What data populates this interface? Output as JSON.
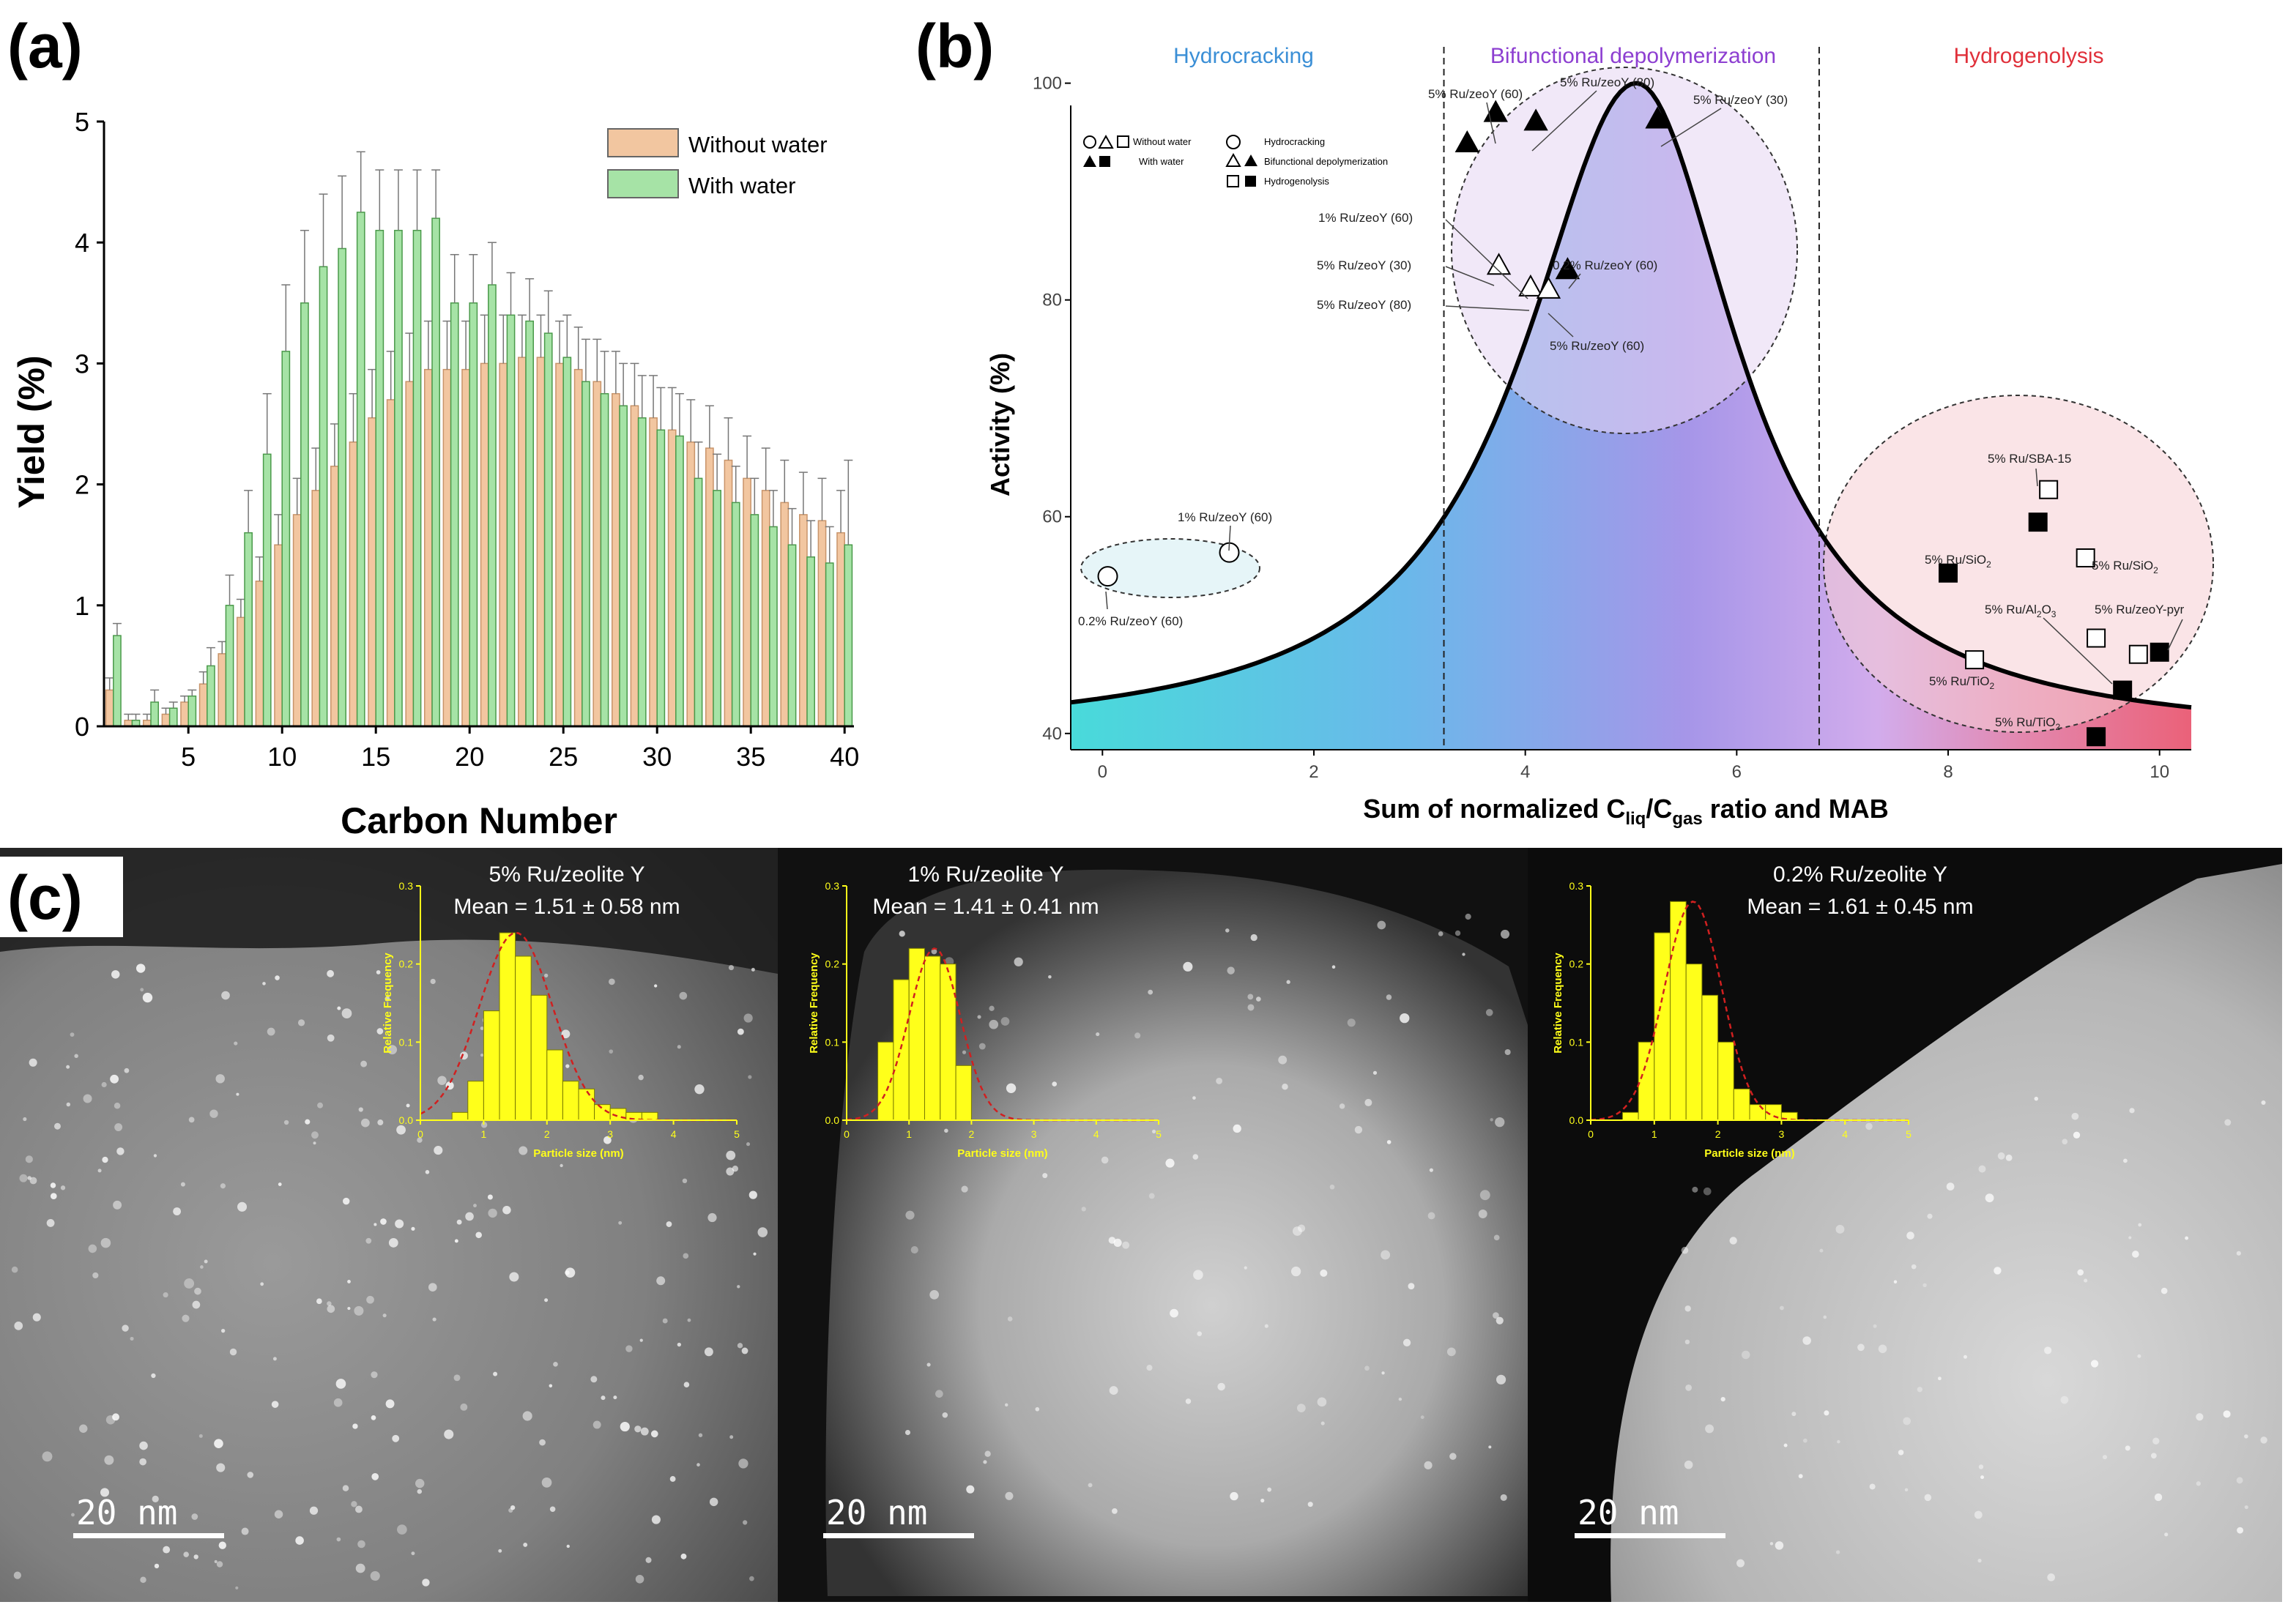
{
  "panel_labels": {
    "a": "(a)",
    "b": "(b)",
    "c": "(c)"
  },
  "colors": {
    "without": "#f2c6a0",
    "with": "#7fc87f",
    "hydro_text": "#3b8fd6",
    "bifunc_text": "#8d3fd1",
    "hydrog_text": "#e0303a",
    "yellow": "#ffff1a"
  },
  "chart_data": [
    {
      "type": "bar",
      "panel": "(a)",
      "xlabel": "Carbon Number",
      "ylabel": "Yield (%)",
      "ylim": [
        0,
        5
      ],
      "xlim": [
        0.5,
        40.5
      ],
      "xticks": [
        "5",
        "10",
        "15",
        "20",
        "25",
        "30",
        "35",
        "40"
      ],
      "yticks": [
        "0",
        "1",
        "2",
        "3",
        "4",
        "5"
      ],
      "legend": [
        "Without water",
        "With water"
      ],
      "categories": [
        1,
        2,
        3,
        4,
        5,
        6,
        7,
        8,
        9,
        10,
        11,
        12,
        13,
        14,
        15,
        16,
        17,
        18,
        19,
        20,
        21,
        22,
        23,
        24,
        25,
        26,
        27,
        28,
        29,
        30,
        31,
        32,
        33,
        34,
        35,
        36,
        37,
        38,
        39,
        40
      ],
      "series": [
        {
          "name": "Without water",
          "values": [
            0.3,
            0.05,
            0.05,
            0.1,
            0.2,
            0.35,
            0.6,
            0.9,
            1.2,
            1.5,
            1.75,
            1.95,
            2.15,
            2.35,
            2.55,
            2.7,
            2.85,
            2.95,
            2.95,
            2.95,
            3.0,
            3.0,
            3.05,
            3.05,
            3.0,
            2.95,
            2.85,
            2.75,
            2.65,
            2.55,
            2.45,
            2.35,
            2.3,
            2.2,
            2.05,
            1.95,
            1.85,
            1.75,
            1.7,
            1.6
          ],
          "errors": [
            0.1,
            0.05,
            0.05,
            0.05,
            0.05,
            0.1,
            0.1,
            0.15,
            0.2,
            0.25,
            0.3,
            0.35,
            0.35,
            0.4,
            0.4,
            0.4,
            0.4,
            0.4,
            0.4,
            0.4,
            0.4,
            0.4,
            0.35,
            0.35,
            0.35,
            0.35,
            0.35,
            0.35,
            0.35,
            0.35,
            0.35,
            0.35,
            0.35,
            0.35,
            0.35,
            0.35,
            0.35,
            0.35,
            0.35,
            0.35
          ]
        },
        {
          "name": "With water",
          "values": [
            0.75,
            0.05,
            0.2,
            0.15,
            0.25,
            0.5,
            1.0,
            1.6,
            2.25,
            3.1,
            3.5,
            3.8,
            3.95,
            4.25,
            4.1,
            4.1,
            4.1,
            4.2,
            3.5,
            3.5,
            3.65,
            3.4,
            3.35,
            3.25,
            3.05,
            2.85,
            2.75,
            2.65,
            2.55,
            2.45,
            2.4,
            2.05,
            1.95,
            1.85,
            1.75,
            1.65,
            1.5,
            1.4,
            1.35,
            1.5
          ],
          "errors": [
            0.1,
            0.05,
            0.1,
            0.05,
            0.05,
            0.15,
            0.25,
            0.35,
            0.5,
            0.55,
            0.6,
            0.6,
            0.6,
            0.5,
            0.5,
            0.5,
            0.5,
            0.4,
            0.4,
            0.4,
            0.35,
            0.35,
            0.35,
            0.35,
            0.35,
            0.35,
            0.35,
            0.35,
            0.35,
            0.35,
            0.35,
            0.3,
            0.3,
            0.3,
            0.3,
            0.3,
            0.3,
            0.3,
            0.3,
            0.7
          ]
        }
      ]
    },
    {
      "type": "scatter",
      "panel": "(b)",
      "xlabel_main": "Sum of normalized C",
      "xlabel_sub1": "liq",
      "xlabel_slash": "/C",
      "xlabel_sub2": "gas",
      "xlabel_tail": " ratio and MAB",
      "ylabel": "Activity (%)",
      "xlim": [
        -0.3,
        10.3
      ],
      "ylim": [
        38.5,
        102
      ],
      "xticks": [
        "0",
        "2",
        "4",
        "6",
        "8",
        "10"
      ],
      "yticks": [
        "40",
        "60",
        "80",
        "100"
      ],
      "regions": [
        "Hydrocracking",
        "Bifunctional depolymerization",
        "Hydrogenolysis"
      ],
      "boundaries": [
        3.23,
        6.78
      ],
      "curve": {
        "peak_x": 5.05,
        "peak_y": 100,
        "base_y": 39.5,
        "left_width": 1.3,
        "right_width": 1.18
      },
      "legend": {
        "without": "Without water",
        "with": "With water",
        "cat1": "Hydrocracking",
        "cat2": "Bifunctional depolymerization",
        "cat3": "Hydrogenolysis"
      },
      "points": [
        {
          "label": "0.2% Ru/zeoY (60)",
          "x": 0.05,
          "y": 54.5,
          "marker": "circle",
          "filled": false
        },
        {
          "label": "1% Ru/zeoY (60)",
          "x": 1.2,
          "y": 56.7,
          "marker": "circle",
          "filled": false
        },
        {
          "label": "5% Ru/zeoY (60)",
          "x": 3.45,
          "y": 94.5,
          "marker": "triangle",
          "filled": true
        },
        {
          "label": "",
          "x": 3.72,
          "y": 97.3,
          "marker": "triangle",
          "filled": true
        },
        {
          "label": "5% Ru/zeoY (80)",
          "x": 4.1,
          "y": 96.5,
          "marker": "triangle",
          "filled": true
        },
        {
          "label": "5% Ru/zeoY (30)",
          "x": 5.25,
          "y": 96.7,
          "marker": "triangle",
          "filled": true
        },
        {
          "label": "5% Ru/zeoY (30)",
          "x": 3.75,
          "y": 83.2,
          "marker": "triangle",
          "filled": false
        },
        {
          "label": "0.2% Ru/zeoY (60)",
          "x": 4.4,
          "y": 82.8,
          "marker": "triangle",
          "filled": true
        },
        {
          "label": "5% Ru/zeoY (80)",
          "x": 4.05,
          "y": 81.2,
          "marker": "triangle",
          "filled": false
        },
        {
          "label": "5% Ru/zeoY (60)",
          "x": 4.22,
          "y": 81.0,
          "marker": "triangle",
          "filled": false
        },
        {
          "label": "5% Ru/SBA-15",
          "x": 8.95,
          "y": 62.5,
          "marker": "square",
          "filled": false
        },
        {
          "label": "",
          "x": 8.85,
          "y": 59.5,
          "marker": "square",
          "filled": true
        },
        {
          "label": "5% Ru/SiO2",
          "x": 9.3,
          "y": 56.2,
          "marker": "square",
          "filled": false
        },
        {
          "label": "5% Ru/SiO2",
          "x": 8.0,
          "y": 54.8,
          "marker": "square",
          "filled": true
        },
        {
          "label": "5% Ru/Al2O3",
          "x": 9.4,
          "y": 48.8,
          "marker": "square",
          "filled": false
        },
        {
          "label": "5% Ru/zeoY-pyr",
          "x": 9.8,
          "y": 47.3,
          "marker": "square",
          "filled": false
        },
        {
          "label": "",
          "x": 10.0,
          "y": 47.5,
          "marker": "square",
          "filled": true
        },
        {
          "label": "5% Ru/TiO2",
          "x": 8.25,
          "y": 46.8,
          "marker": "square",
          "filled": false
        },
        {
          "label": "",
          "x": 9.65,
          "y": 44.0,
          "marker": "square",
          "filled": true
        },
        {
          "label": "5% Ru/TiO2",
          "x": 9.4,
          "y": 39.7,
          "marker": "square",
          "filled": true
        }
      ],
      "point_labels": {
        "l_02_60_c": "0.2% Ru/zeoY (60)",
        "l_1_60_c": "1% Ru/zeoY (60)",
        "l_5_60_top": "5% Ru/zeoY (60)",
        "l_5_80_top": "5% Ru/zeoY (80)",
        "l_5_30_top": "5% Ru/zeoY (30)",
        "l_1_60_mid": "1% Ru/zeoY (60)",
        "l_5_30_mid": "5% Ru/zeoY (30)",
        "l_02_60_mid": "0.2% Ru/zeoY (60)",
        "l_5_80_mid": "5% Ru/zeoY (80)",
        "l_5_60_bot": "5% Ru/zeoY (60)",
        "l_sba": "5% Ru/SBA-15",
        "l_sio2_a": "5% Ru/SiO",
        "l_sio2_b": "5% Ru/SiO",
        "l_al2o3_a": "5% Ru/Al",
        "l_al2o3_b": "O",
        "l_pyr": "5% Ru/zeoY-pyr",
        "l_tio2_a": "5% Ru/TiO",
        "l_tio2_b": "5% Ru/TiO",
        "sub2": "2",
        "sub3": "3"
      }
    },
    {
      "type": "bar",
      "panel": "(c) 5% Ru/zeolite Y",
      "title": "5% Ru/zeolite Y",
      "mean": "Mean = 1.51 ± 0.58 nm",
      "xlabel": "Particle size (nm)",
      "ylabel": "Relative Frequency",
      "xticks": [
        "0",
        "1",
        "2",
        "3",
        "4",
        "5"
      ],
      "yticks": [
        "0.0",
        "0.1",
        "0.2",
        "0.3"
      ],
      "bin_width": 0.25,
      "bin_start": 0.5,
      "values": [
        0.01,
        0.05,
        0.14,
        0.24,
        0.21,
        0.16,
        0.09,
        0.05,
        0.04,
        0.02,
        0.015,
        0.01,
        0.01
      ],
      "fit_mean": 1.51,
      "fit_sd": 0.58,
      "scale_bar": "20 nm"
    },
    {
      "type": "bar",
      "panel": "(c) 1% Ru/zeolite Y",
      "title": "1% Ru/zeolite Y",
      "mean": "Mean = 1.41 ± 0.41 nm",
      "xlabel": "Particle size (nm)",
      "ylabel": "Relative Frequency",
      "xticks": [
        "0",
        "1",
        "2",
        "3",
        "4",
        "5"
      ],
      "yticks": [
        "0.0",
        "0.1",
        "0.2",
        "0.3"
      ],
      "bin_width": 0.25,
      "bin_start": 0.5,
      "values": [
        0.1,
        0.18,
        0.22,
        0.21,
        0.2,
        0.07
      ],
      "fit_mean": 1.41,
      "fit_sd": 0.41,
      "scale_bar": "20 nm"
    },
    {
      "type": "bar",
      "panel": "(c) 0.2% Ru/zeolite Y",
      "title": "0.2% Ru/zeolite Y",
      "mean": "Mean = 1.61 ± 0.45 nm",
      "xlabel": "Particle size (nm)",
      "ylabel": "Relative Frequency",
      "xticks": [
        "0",
        "1",
        "2",
        "3",
        "4",
        "5"
      ],
      "yticks": [
        "0.0",
        "0.1",
        "0.2",
        "0.3"
      ],
      "bin_width": 0.25,
      "bin_start": 0.5,
      "values": [
        0.01,
        0.1,
        0.24,
        0.28,
        0.2,
        0.16,
        0.1,
        0.04,
        0.02,
        0.02,
        0.01
      ],
      "fit_mean": 1.61,
      "fit_sd": 0.45,
      "scale_bar": "20 nm"
    }
  ]
}
